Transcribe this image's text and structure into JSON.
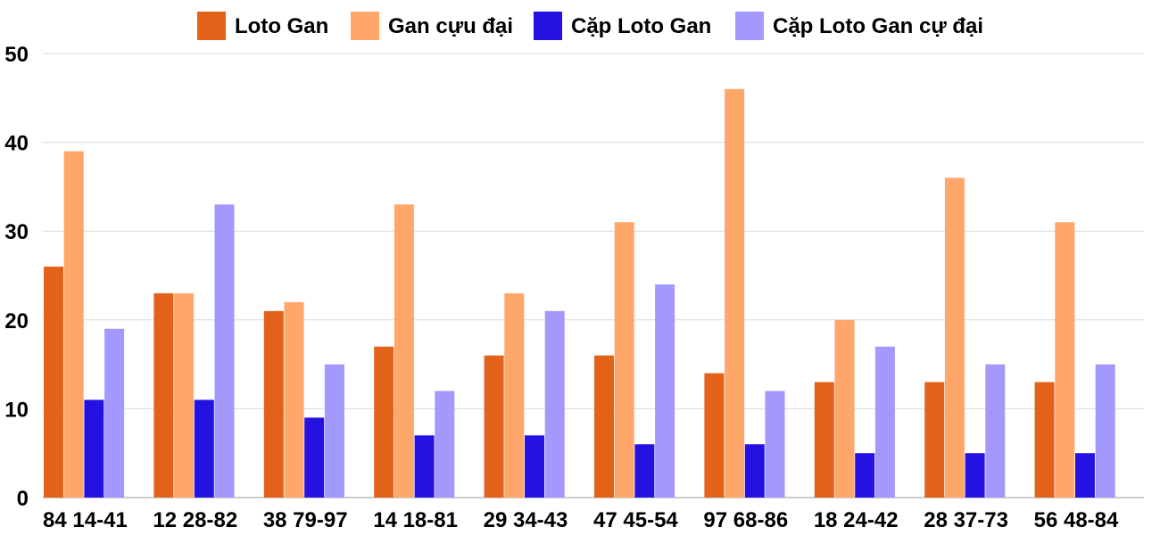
{
  "chart_data": {
    "type": "bar",
    "title": "",
    "xlabel": "",
    "ylabel": "",
    "ylim": [
      0,
      50
    ],
    "yticks": [
      0,
      10,
      20,
      30,
      40,
      50
    ],
    "grid": true,
    "legend_position": "top-center",
    "categories": [
      "84 14-41",
      "12 28-82",
      "38 79-97",
      "14 18-81",
      "29 34-43",
      "47 45-54",
      "97 68-86",
      "18 24-42",
      "28 37-73",
      "56 48-84"
    ],
    "series": [
      {
        "name": "Loto Gan",
        "color": "#e2621a",
        "values": [
          26,
          23,
          21,
          17,
          16,
          16,
          14,
          13,
          13,
          13
        ]
      },
      {
        "name": "Gan cựu đại",
        "color": "#ffa66b",
        "values": [
          39,
          23,
          22,
          33,
          23,
          31,
          46,
          20,
          36,
          31
        ]
      },
      {
        "name": "Cặp Loto Gan",
        "color": "#2512e2",
        "values": [
          11,
          11,
          9,
          7,
          7,
          6,
          6,
          5,
          5,
          5
        ]
      },
      {
        "name": "Cặp Loto Gan cự đại",
        "color": "#a399fc",
        "values": [
          19,
          33,
          15,
          12,
          21,
          24,
          12,
          17,
          15,
          15
        ]
      }
    ]
  }
}
